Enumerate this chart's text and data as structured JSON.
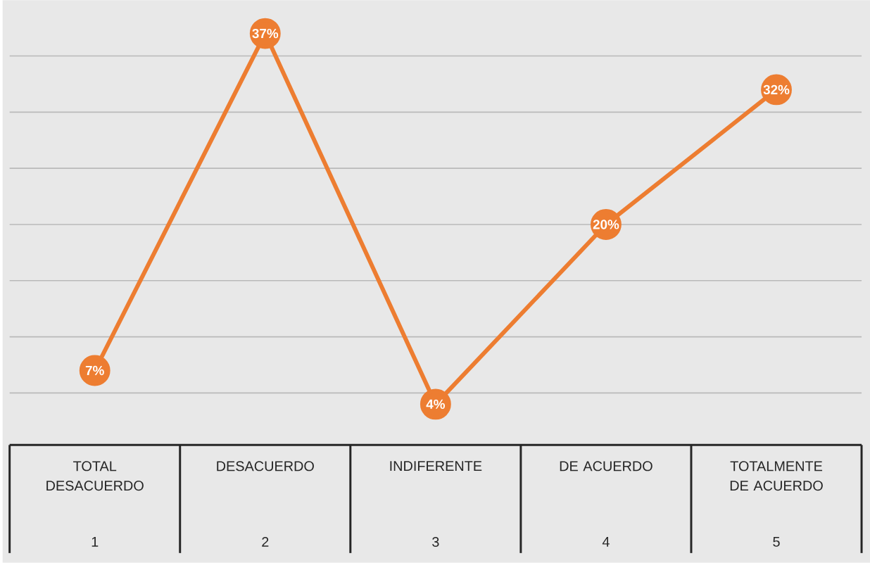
{
  "chart_data": {
    "type": "line",
    "x": [
      1,
      2,
      3,
      4,
      5
    ],
    "values": [
      7,
      37,
      4,
      20,
      32
    ],
    "value_labels": [
      "7%",
      "37%",
      "4%",
      "20%",
      "32%"
    ],
    "color": "#ed7d31",
    "marker": "circle",
    "xlim": [
      0.5,
      5.5
    ],
    "xticks": [
      1,
      2,
      3,
      4,
      5
    ],
    "annotations": [
      "TOTAL DESACUERDO",
      "DESACUERDO",
      "INDIFERENTE",
      "DE ACUERDO",
      "TOTALMENTE DE ACUERDO"
    ],
    "grid": "y",
    "tick_labels": "x"
  }
}
